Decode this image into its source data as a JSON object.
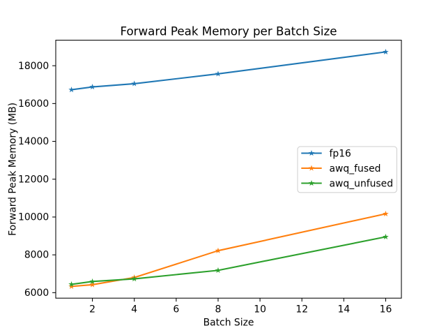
{
  "figure": {
    "background": "#ffffff"
  },
  "chart_data": {
    "type": "line",
    "title": "Forward Peak Memory per Batch Size",
    "xlabel": "Batch Size",
    "ylabel": "Forward Peak Memory (MB)",
    "x": [
      1,
      2,
      4,
      8,
      16
    ],
    "series": [
      {
        "name": "fp16",
        "color": "#1f77b4",
        "marker": "star",
        "values": [
          16730,
          16880,
          17050,
          17570,
          18730
        ]
      },
      {
        "name": "awq_fused",
        "color": "#ff7f0e",
        "marker": "star",
        "values": [
          6330,
          6420,
          6800,
          8220,
          10170
        ]
      },
      {
        "name": "awq_unfused",
        "color": "#2ca02c",
        "marker": "star",
        "values": [
          6440,
          6590,
          6730,
          7180,
          8950
        ]
      }
    ],
    "xlim": [
      0.25,
      16.75
    ],
    "ylim": [
      5710,
      19350
    ],
    "xticks": [
      2,
      4,
      6,
      8,
      10,
      12,
      14,
      16
    ],
    "yticks": [
      6000,
      8000,
      10000,
      12000,
      14000,
      16000,
      18000
    ],
    "grid": false,
    "legend": {
      "position": "center-right",
      "items": [
        "fp16",
        "awq_fused",
        "awq_unfused"
      ]
    }
  }
}
